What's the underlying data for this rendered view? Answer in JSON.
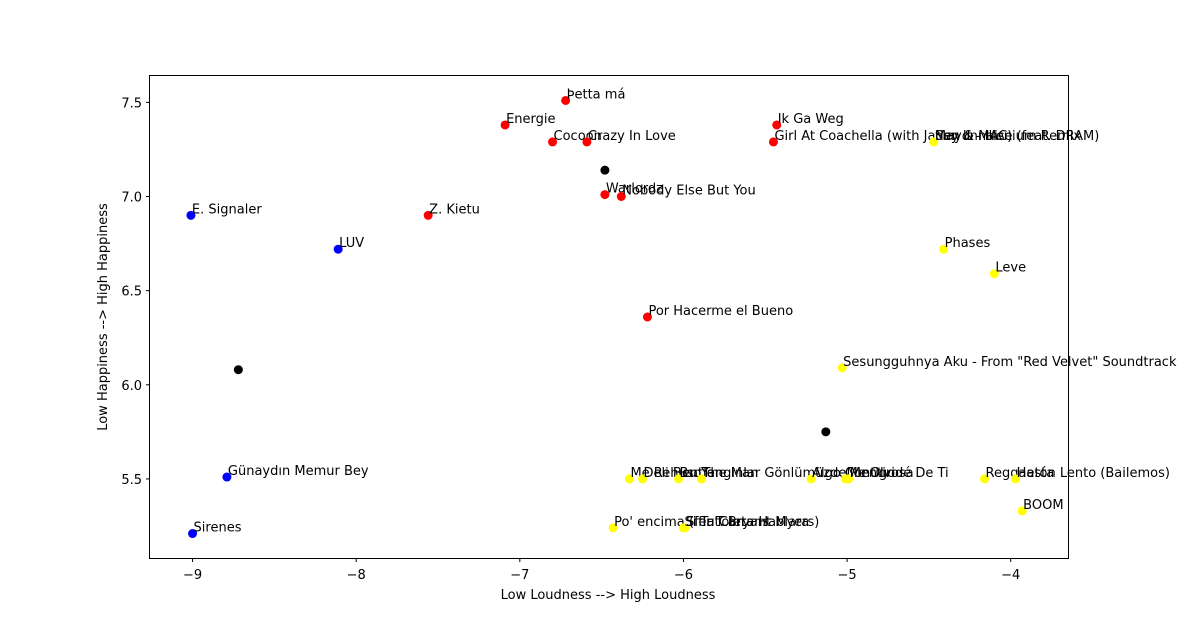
{
  "chart_data": {
    "type": "scatter",
    "xlabel": "Low Loudness --> High Loudness",
    "ylabel": "Low Happiness --> High Happiness",
    "xlim": [
      -9.26,
      -3.65
    ],
    "ylim": [
      5.08,
      7.64
    ],
    "x_ticks": [
      -9,
      -8,
      -7,
      -6,
      -5,
      -4
    ],
    "x_tick_labels": [
      "−9",
      "−8",
      "−7",
      "−6",
      "−5",
      "−4"
    ],
    "y_ticks": [
      5.5,
      6.0,
      6.5,
      7.0,
      7.5
    ],
    "y_tick_labels": [
      "5.5",
      "6.0",
      "6.5",
      "7.0",
      "7.5"
    ],
    "grid": false,
    "colors": {
      "blue": "#0000ff",
      "red": "#ff0000",
      "yellow": "#ffff00",
      "black": "#000000"
    },
    "points": [
      {
        "x": -6.72,
        "y": 7.51,
        "label": "Þetta má",
        "color": "red"
      },
      {
        "x": -7.09,
        "y": 7.38,
        "label": "Energie",
        "color": "red"
      },
      {
        "x": -6.8,
        "y": 7.29,
        "label": "Cocoon",
        "color": "red"
      },
      {
        "x": -6.59,
        "y": 7.29,
        "label": "Crazy In Love",
        "color": "red"
      },
      {
        "x": -5.43,
        "y": 7.38,
        "label": "Ik Ga Weg",
        "color": "red"
      },
      {
        "x": -5.45,
        "y": 7.29,
        "label": "Girl At Coachella (with Jaden & MAC)",
        "color": "red"
      },
      {
        "x": -6.48,
        "y": 7.01,
        "label": "Warlordz",
        "color": "red"
      },
      {
        "x": -6.38,
        "y": 7.0,
        "label": "Nobody Else But You",
        "color": "red"
      },
      {
        "x": -7.56,
        "y": 6.9,
        "label": "Z. Kietu",
        "color": "red"
      },
      {
        "x": -6.22,
        "y": 6.36,
        "label": "Por Hacerme el Bueno",
        "color": "red"
      },
      {
        "x": -9.01,
        "y": 6.9,
        "label": "E. Signaler",
        "color": "blue"
      },
      {
        "x": -8.11,
        "y": 6.72,
        "label": "LUV",
        "color": "blue"
      },
      {
        "x": -8.79,
        "y": 5.51,
        "label": "Günaydın Memur Bey",
        "color": "blue"
      },
      {
        "x": -9.0,
        "y": 5.21,
        "label": "Sirenes",
        "color": "blue"
      },
      {
        "x": -4.47,
        "y": 7.29,
        "label": "Say It - Illenium Remix",
        "color": "yellow"
      },
      {
        "x": -4.47,
        "y": 7.29,
        "label": "Mayonnaise (feat. DRAM)",
        "color": "yellow"
      },
      {
        "x": -4.41,
        "y": 6.72,
        "label": "Phases",
        "color": "yellow"
      },
      {
        "x": -4.1,
        "y": 6.59,
        "label": "Leve",
        "color": "yellow"
      },
      {
        "x": -5.03,
        "y": 6.09,
        "label": "Sesungguhnya Aku - From \"Red Velvet\" Soundtrack",
        "color": "yellow"
      },
      {
        "x": -6.33,
        "y": 5.5,
        "label": "Me Rehuso",
        "color": "yellow"
      },
      {
        "x": -6.25,
        "y": 5.5,
        "label": "Deli Bentler",
        "color": "yellow"
      },
      {
        "x": -6.03,
        "y": 5.5,
        "label": "Bu Yangınlar Gönlümüzde",
        "color": "yellow"
      },
      {
        "x": -5.89,
        "y": 5.5,
        "label": "The Man",
        "color": "yellow"
      },
      {
        "x": -5.22,
        "y": 5.5,
        "label": "Algo Contigo",
        "color": "yellow"
      },
      {
        "x": -5.01,
        "y": 5.5,
        "label": "Me Olvidé De Ti",
        "color": "yellow"
      },
      {
        "x": -4.99,
        "y": 5.5,
        "label": "Mentirosa",
        "color": "yellow"
      },
      {
        "x": -4.16,
        "y": 5.5,
        "label": "Reggaetón Lento (Bailemos)",
        "color": "yellow"
      },
      {
        "x": -3.97,
        "y": 5.5,
        "label": "Hasta",
        "color": "yellow"
      },
      {
        "x": -3.93,
        "y": 5.33,
        "label": "BOOM",
        "color": "yellow"
      },
      {
        "x": -6.43,
        "y": 5.24,
        "label": "Po' encima (feat. Bryant Myers)",
        "color": "yellow"
      },
      {
        "x": -5.99,
        "y": 5.24,
        "label": "Sifir Tolerans",
        "color": "yellow"
      },
      {
        "x": -6.0,
        "y": 5.24,
        "label": "Si Tu Carta Hablara",
        "color": "yellow"
      },
      {
        "x": -6.48,
        "y": 7.14,
        "label": "",
        "color": "black"
      },
      {
        "x": -8.72,
        "y": 6.08,
        "label": "",
        "color": "black"
      },
      {
        "x": -5.13,
        "y": 5.75,
        "label": "",
        "color": "black"
      }
    ]
  }
}
